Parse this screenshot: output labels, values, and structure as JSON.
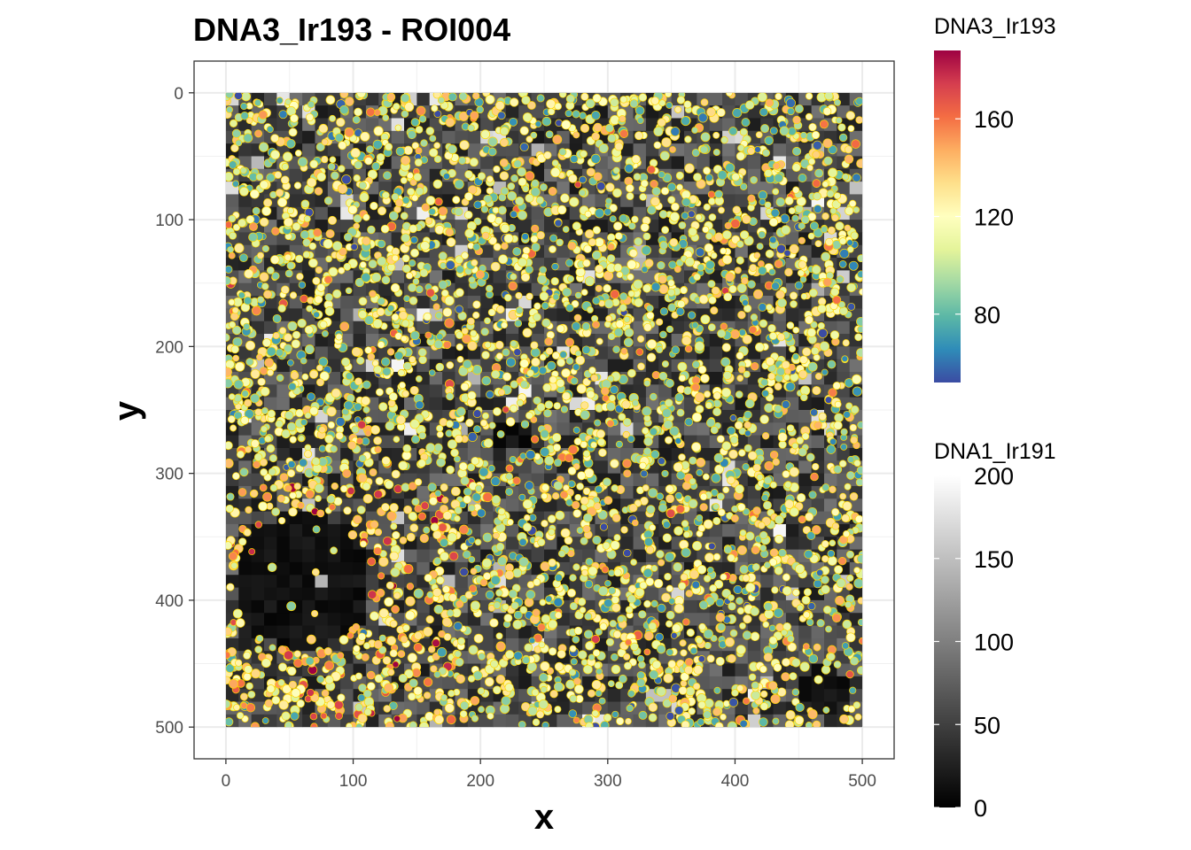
{
  "chart_data": {
    "type": "scatter",
    "title": "DNA3_Ir193 - ROI004",
    "xlabel": "x",
    "ylabel": "y",
    "xlim": [
      -25,
      525
    ],
    "ylim": [
      -25,
      525
    ],
    "y_reversed": true,
    "x_ticks": [
      0,
      100,
      200,
      300,
      400,
      500
    ],
    "y_ticks": [
      0,
      100,
      200,
      300,
      400,
      500
    ],
    "x_tick_labels": [
      "0",
      "100",
      "200",
      "300",
      "400",
      "500"
    ],
    "y_tick_labels": [
      "0",
      "100",
      "200",
      "300",
      "400",
      "500"
    ],
    "image_extent": {
      "x": [
        0,
        500
      ],
      "y": [
        0,
        500
      ]
    },
    "background_image": "grayscale DNA1_Ir191 intensity image",
    "cell_outline_color": "#FFD700",
    "grid": true,
    "legend_placement": "right",
    "legends": [
      {
        "name": "DNA3_Ir193",
        "type": "colorbar",
        "palette": "Spectral (reversed)",
        "range": [
          52,
          188
        ],
        "ticks": [
          80,
          120,
          160
        ],
        "tick_labels": [
          "80",
          "120",
          "160"
        ],
        "colors": [
          "#3B4CA3",
          "#2F8CB8",
          "#5CB8A6",
          "#A3D9A4",
          "#E4F49A",
          "#FFFFBF",
          "#FEE08B",
          "#FDAE61",
          "#F46D43",
          "#D53E4F",
          "#9E0142"
        ]
      },
      {
        "name": "DNA1_Ir191",
        "type": "colorbar",
        "palette": "grayscale",
        "range": [
          0,
          200
        ],
        "ticks": [
          0,
          50,
          100,
          150,
          200
        ],
        "tick_labels": [
          "0",
          "50",
          "100",
          "150",
          "200"
        ],
        "colors": [
          "#000000",
          "#ffffff"
        ]
      }
    ],
    "dark_regions": [
      {
        "cx": 60,
        "cy": 385,
        "r": 55,
        "label": ""
      },
      {
        "cx": 225,
        "cy": 270,
        "r": 12,
        "label": ""
      },
      {
        "cx": 470,
        "cy": 470,
        "r": 20,
        "label": ""
      }
    ],
    "cell_density_note": "",
    "n_cells_estimate": 4200
  }
}
